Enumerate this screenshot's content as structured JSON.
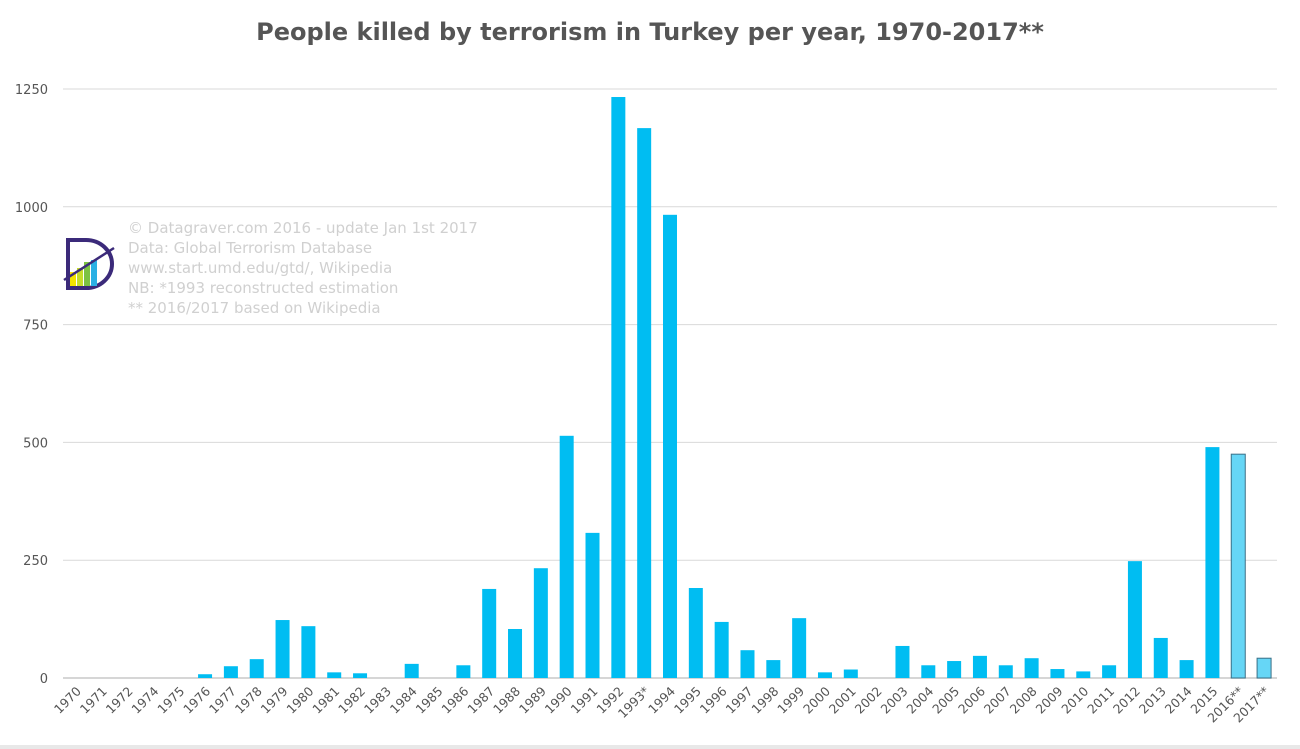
{
  "chart_data": {
    "type": "bar",
    "title": "People killed by terrorism in Turkey per year, 1970-2017**",
    "xlabel": "",
    "ylabel": "",
    "ylim": [
      0,
      1250
    ],
    "yticks": [
      "0",
      "250",
      "500",
      "750",
      "1000",
      "1250"
    ],
    "grid": true,
    "categories": [
      "1970",
      "1971",
      "1972",
      "1974",
      "1975",
      "1976",
      "1977",
      "1978",
      "1979",
      "1980",
      "1981",
      "1982",
      "1983",
      "1984",
      "1985",
      "1986",
      "1987",
      "1988",
      "1989",
      "1990",
      "1991",
      "1992",
      "1993*",
      "1994",
      "1995",
      "1996",
      "1997",
      "1998",
      "1999",
      "2000",
      "2001",
      "2002",
      "2003",
      "2004",
      "2005",
      "2006",
      "2007",
      "2008",
      "2009",
      "2010",
      "2011",
      "2012",
      "2013",
      "2014",
      "2015",
      "2016**",
      "2017**"
    ],
    "values": [
      0,
      0,
      0,
      0,
      0,
      8,
      25,
      40,
      123,
      110,
      12,
      10,
      0,
      30,
      0,
      27,
      189,
      104,
      233,
      514,
      308,
      1233,
      1167,
      983,
      191,
      119,
      59,
      38,
      127,
      12,
      18,
      0,
      68,
      27,
      36,
      47,
      27,
      42,
      19,
      14,
      27,
      248,
      85,
      38,
      490,
      475,
      42
    ],
    "estimated": [
      "2016**",
      "2017**"
    ],
    "colors": {
      "bar": "#00bdf2",
      "estimated_bar": "#66d6f6",
      "estimated_outline": "#3a6f86"
    },
    "annotations": [
      "© Datagraver.com 2016 - update Jan 1st 2017",
      "Data: Global Terrorism Database",
      "www.start.umd.edu/gtd/,  Wikipedia",
      "NB: *1993 reconstructed estimation",
      " ** 2016/2017 based on Wikipedia"
    ]
  }
}
